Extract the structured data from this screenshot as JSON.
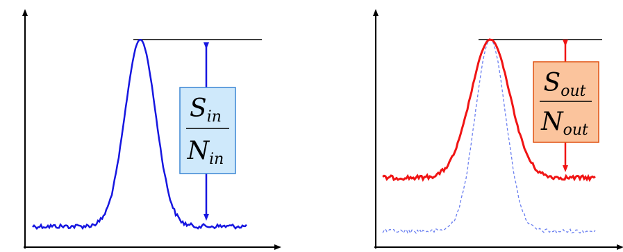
{
  "panels": [
    {
      "id": "input",
      "color": "#1616e0",
      "box_fill": "#cfe9fb",
      "box_stroke": "#3a86d4",
      "numerator": {
        "main": "S",
        "sub": "in"
      },
      "denominator": {
        "main": "N",
        "sub": "in"
      },
      "curves": [
        "input-signal-solid"
      ]
    },
    {
      "id": "output",
      "color": "#f01414",
      "box_fill": "#fbc49d",
      "box_stroke": "#e05010",
      "numerator": {
        "main": "S",
        "sub": "out"
      },
      "denominator": {
        "main": "N",
        "sub": "out"
      },
      "curves": [
        "output-signal-solid",
        "input-signal-dashed"
      ]
    }
  ],
  "colors": {
    "axis": "#000000",
    "reference_line": "#000000",
    "dashed_curve": "#6a7ff0"
  }
}
